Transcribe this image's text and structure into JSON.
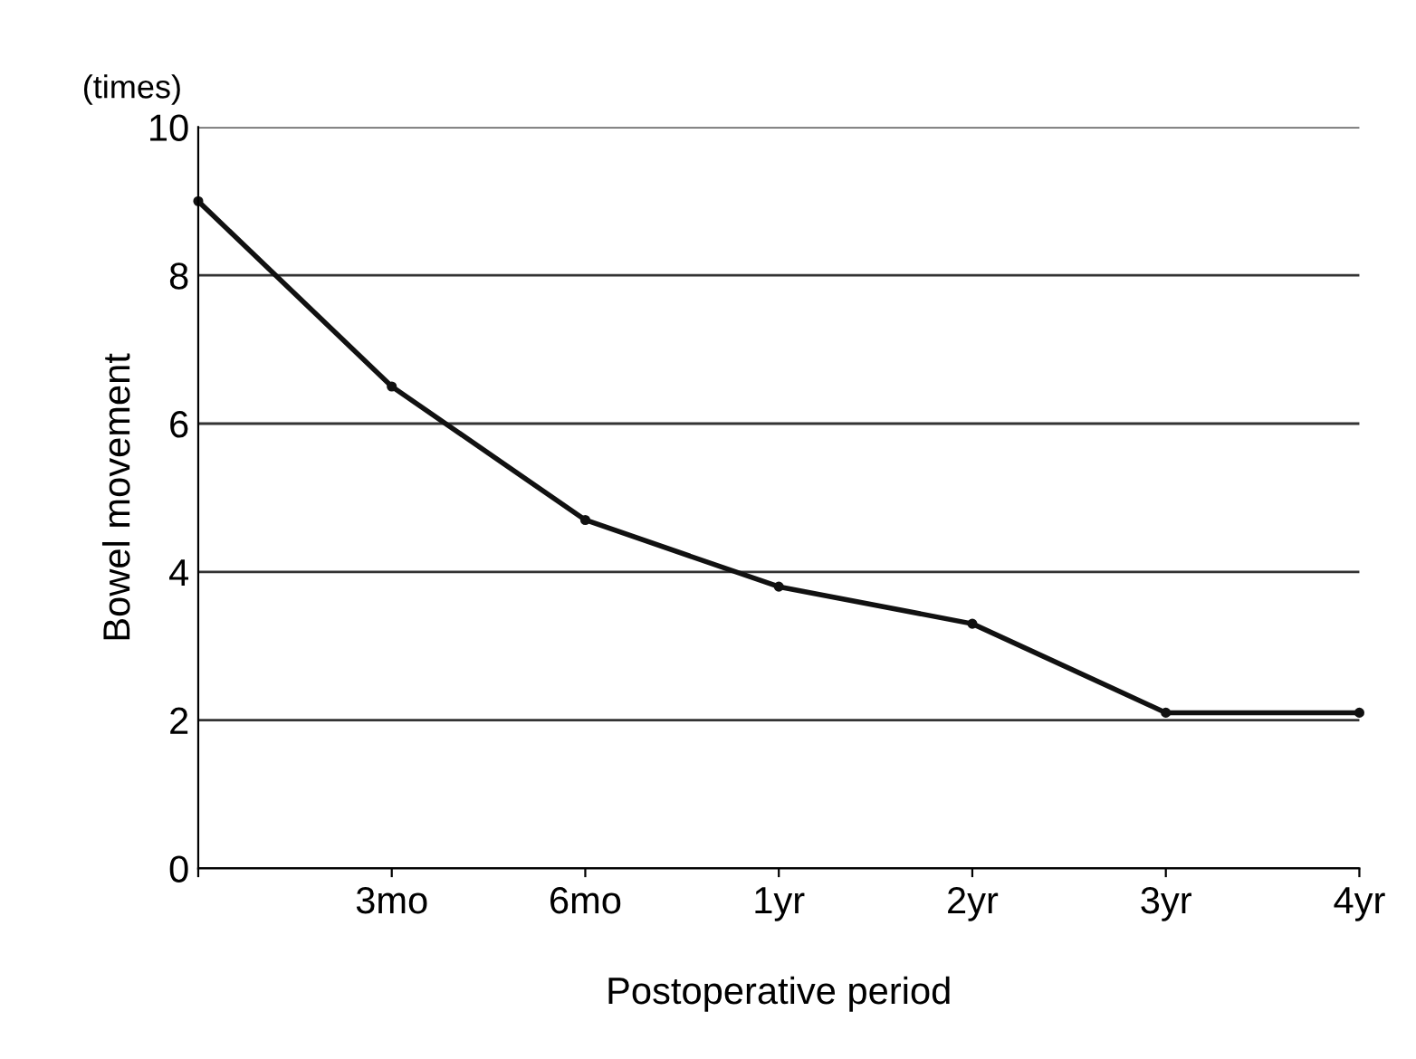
{
  "chart_data": {
    "type": "line",
    "xlabel": "Postoperative period",
    "ylabel": "Bowel movement",
    "annotations": [
      "(times)"
    ],
    "categories": [
      null,
      "3mo",
      "6mo",
      "1yr",
      "2yr",
      "3yr",
      "4yr"
    ],
    "series": [
      {
        "color": "#111111",
        "values": [
          9.0,
          6.5,
          4.7,
          3.8,
          3.3,
          2.1,
          2.1
        ]
      }
    ],
    "ylim": [
      0,
      10
    ],
    "yticks": [
      0,
      2,
      4,
      6,
      8,
      10
    ],
    "grid": "y",
    "marker": "circle",
    "line_style": "solid",
    "legend": false
  }
}
